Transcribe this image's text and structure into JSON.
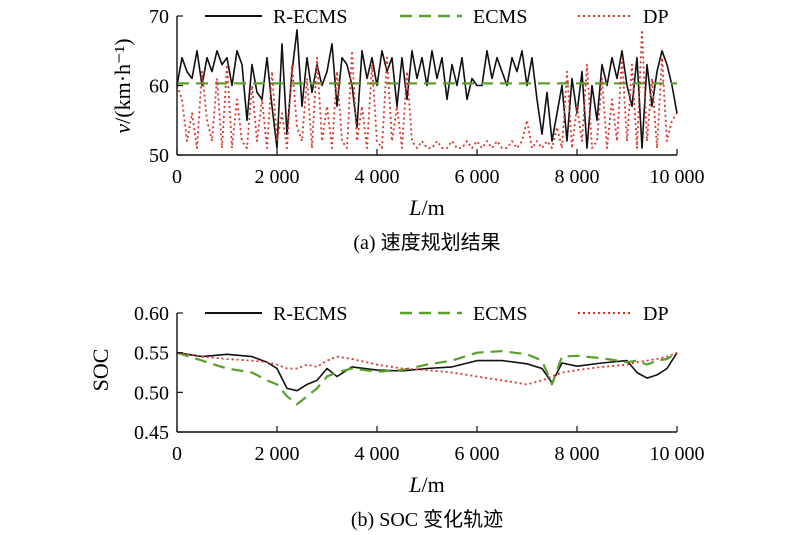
{
  "chart_data": [
    {
      "type": "line",
      "caption": "(a) 速度规划结果",
      "xlabel_var": "L",
      "xlabel_unit": "/m",
      "ylabel_var": "v",
      "ylabel_unit": "/(km·h⁻¹)",
      "xlim": [
        0,
        10000
      ],
      "ylim": [
        50,
        70
      ],
      "xticks": [
        0,
        2000,
        4000,
        6000,
        8000,
        10000
      ],
      "xtick_labels": [
        "0",
        "2 000",
        "4 000",
        "6 000",
        "8 000",
        "10 000"
      ],
      "yticks": [
        50,
        60,
        70
      ],
      "ytick_labels": [
        "50",
        "60",
        "70"
      ],
      "legend_position": "top",
      "series": [
        {
          "name": "R-ECMS",
          "color": "#111111",
          "style": "solid",
          "x": [
            0,
            100,
            200,
            300,
            400,
            500,
            600,
            700,
            800,
            900,
            1000,
            1100,
            1200,
            1300,
            1400,
            1500,
            1600,
            1700,
            1800,
            1900,
            2000,
            2100,
            2200,
            2300,
            2400,
            2500,
            2600,
            2700,
            2800,
            2900,
            3000,
            3100,
            3200,
            3300,
            3400,
            3500,
            3600,
            3700,
            3800,
            3900,
            4000,
            4100,
            4200,
            4300,
            4400,
            4500,
            4600,
            4700,
            4800,
            4900,
            5000,
            5100,
            5200,
            5300,
            5400,
            5500,
            5600,
            5700,
            5800,
            5900,
            6000,
            6100,
            6200,
            6300,
            6400,
            6500,
            6600,
            6700,
            6800,
            6900,
            7000,
            7100,
            7200,
            7300,
            7400,
            7500,
            7600,
            7700,
            7800,
            7900,
            8000,
            8100,
            8200,
            8300,
            8400,
            8500,
            8600,
            8700,
            8800,
            8900,
            9000,
            9100,
            9200,
            9300,
            9400,
            9500,
            9600,
            9700,
            9800,
            9900,
            10000
          ],
          "y": [
            60,
            64,
            62,
            61,
            65,
            60,
            64,
            62,
            65,
            63,
            64,
            60,
            65,
            63,
            55,
            63,
            59,
            58,
            64,
            57,
            51,
            66,
            53,
            62,
            68,
            57,
            64,
            59,
            63,
            60,
            62,
            66,
            57,
            64,
            63,
            60,
            54,
            65,
            61,
            64,
            60,
            65,
            62,
            64,
            57,
            64,
            58,
            65,
            61,
            64,
            60,
            65,
            61,
            64,
            58,
            63,
            60,
            64,
            58,
            61,
            60,
            60,
            65,
            61,
            64,
            62,
            60,
            64,
            62,
            65,
            60,
            64,
            58,
            53,
            59,
            52,
            56,
            60,
            52,
            61,
            56,
            62,
            51,
            60,
            55,
            63,
            60,
            64,
            61,
            65,
            60,
            57,
            64,
            51,
            63,
            57,
            62,
            65,
            63,
            60,
            56
          ]
        },
        {
          "name": "ECMS",
          "color": "#5aa02c",
          "style": "dashed",
          "x": [
            0,
            10000
          ],
          "y": [
            60.3,
            60.3
          ]
        },
        {
          "name": "DP",
          "color": "#d9352a",
          "style": "dotted",
          "x": [
            0,
            100,
            200,
            300,
            400,
            500,
            600,
            700,
            800,
            900,
            1000,
            1100,
            1200,
            1300,
            1400,
            1500,
            1600,
            1700,
            1800,
            1900,
            2000,
            2100,
            2200,
            2300,
            2400,
            2500,
            2600,
            2700,
            2800,
            2900,
            3000,
            3100,
            3200,
            3300,
            3400,
            3500,
            3600,
            3700,
            3800,
            3900,
            4000,
            4100,
            4200,
            4300,
            4400,
            4500,
            4600,
            4700,
            4800,
            4900,
            5000,
            5100,
            5200,
            5300,
            5400,
            5500,
            5600,
            5700,
            5800,
            5900,
            6000,
            6100,
            6200,
            6300,
            6400,
            6500,
            6600,
            6700,
            6800,
            6900,
            7000,
            7100,
            7200,
            7300,
            7400,
            7500,
            7600,
            7700,
            7800,
            7900,
            8000,
            8100,
            8200,
            8300,
            8400,
            8500,
            8600,
            8700,
            8800,
            8900,
            9000,
            9100,
            9200,
            9300,
            9400,
            9500,
            9600,
            9700,
            9800,
            9900,
            10000
          ],
          "y": [
            60,
            58,
            52,
            56,
            51,
            62,
            55,
            52,
            61,
            51,
            63,
            51,
            58,
            52,
            51,
            60,
            52,
            58,
            51,
            62,
            52,
            56,
            51,
            63,
            54,
            52,
            61,
            51,
            64,
            52,
            57,
            51,
            62,
            52,
            51,
            65,
            52,
            57,
            51,
            63,
            52,
            51,
            64,
            52,
            57,
            51,
            62,
            52,
            51,
            52,
            51,
            51,
            52,
            51,
            51,
            52,
            51,
            51,
            52,
            51,
            52,
            51,
            52,
            51,
            52,
            51,
            51,
            52,
            51,
            52,
            55,
            51,
            52,
            51,
            52,
            51,
            54,
            51,
            62,
            51,
            57,
            52,
            63,
            51,
            52,
            61,
            51,
            58,
            52,
            64,
            52,
            63,
            51,
            68,
            52,
            61,
            51,
            64,
            52,
            55,
            56
          ]
        }
      ]
    },
    {
      "type": "line",
      "caption": "(b) SOC 变化轨迹",
      "xlabel_var": "L",
      "xlabel_unit": "/m",
      "ylabel": "SOC",
      "xlim": [
        0,
        10000
      ],
      "ylim": [
        0.45,
        0.6
      ],
      "xticks": [
        0,
        2000,
        4000,
        6000,
        8000,
        10000
      ],
      "xtick_labels": [
        "0",
        "2 000",
        "4 000",
        "6 000",
        "8 000",
        "10 000"
      ],
      "yticks": [
        0.45,
        0.5,
        0.55,
        0.6
      ],
      "ytick_labels": [
        "0.45",
        "0.50",
        "0.55",
        "0.60"
      ],
      "legend_position": "top",
      "series": [
        {
          "name": "R-ECMS",
          "color": "#111111",
          "style": "solid",
          "x": [
            0,
            500,
            1000,
            1500,
            1800,
            2000,
            2200,
            2400,
            2600,
            2800,
            3000,
            3200,
            3500,
            4000,
            4500,
            5000,
            5500,
            6000,
            6500,
            7000,
            7300,
            7500,
            7700,
            8000,
            8500,
            9000,
            9200,
            9400,
            9600,
            9800,
            10000
          ],
          "y": [
            0.55,
            0.545,
            0.548,
            0.545,
            0.538,
            0.53,
            0.505,
            0.502,
            0.51,
            0.515,
            0.53,
            0.52,
            0.532,
            0.528,
            0.527,
            0.53,
            0.532,
            0.54,
            0.54,
            0.536,
            0.53,
            0.512,
            0.537,
            0.533,
            0.537,
            0.54,
            0.525,
            0.518,
            0.522,
            0.53,
            0.55
          ]
        },
        {
          "name": "ECMS",
          "color": "#5aa02c",
          "style": "dashed",
          "x": [
            0,
            500,
            1000,
            1500,
            1800,
            2000,
            2200,
            2400,
            2600,
            2800,
            3000,
            3200,
            3500,
            4000,
            4500,
            5000,
            5500,
            6000,
            6500,
            7000,
            7300,
            7500,
            7700,
            8000,
            8500,
            9000,
            9200,
            9400,
            9600,
            9800,
            10000
          ],
          "y": [
            0.55,
            0.54,
            0.53,
            0.525,
            0.515,
            0.51,
            0.495,
            0.485,
            0.495,
            0.505,
            0.52,
            0.525,
            0.53,
            0.526,
            0.528,
            0.535,
            0.54,
            0.55,
            0.552,
            0.548,
            0.54,
            0.51,
            0.545,
            0.546,
            0.543,
            0.538,
            0.54,
            0.535,
            0.54,
            0.542,
            0.55
          ]
        },
        {
          "name": "DP",
          "color": "#d9352a",
          "style": "dotted",
          "x": [
            0,
            500,
            1000,
            1500,
            1800,
            2000,
            2200,
            2400,
            2600,
            2800,
            3000,
            3200,
            3500,
            4000,
            4500,
            5000,
            5500,
            6000,
            6500,
            7000,
            7300,
            7500,
            7700,
            8000,
            8500,
            9000,
            9200,
            9400,
            9600,
            9800,
            10000
          ],
          "y": [
            0.55,
            0.545,
            0.542,
            0.54,
            0.538,
            0.535,
            0.53,
            0.53,
            0.535,
            0.532,
            0.54,
            0.545,
            0.542,
            0.535,
            0.53,
            0.528,
            0.525,
            0.52,
            0.515,
            0.51,
            0.515,
            0.52,
            0.525,
            0.528,
            0.532,
            0.535,
            0.538,
            0.54,
            0.542,
            0.545,
            0.55
          ]
        }
      ]
    }
  ]
}
